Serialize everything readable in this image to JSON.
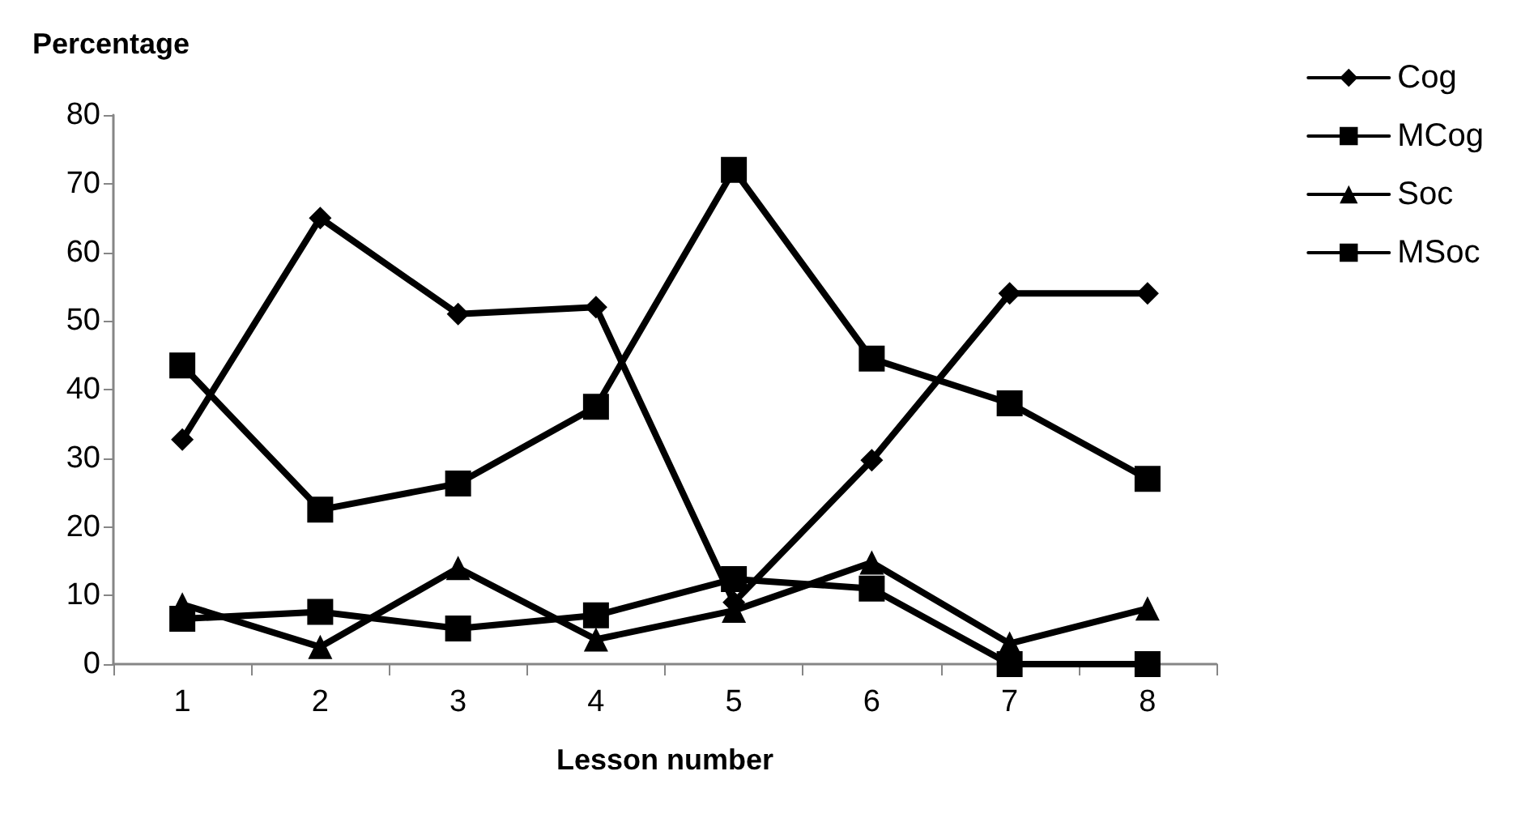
{
  "chart_data": {
    "type": "line",
    "xlabel": "Lesson number",
    "ylabel": "Percentage",
    "categories": [
      "1",
      "2",
      "3",
      "4",
      "5",
      "6",
      "7",
      "8"
    ],
    "series": [
      {
        "name": "Cog",
        "color": "#000000",
        "marker": "diamond",
        "values": [
          32.7,
          65,
          51,
          52,
          9,
          29.7,
          54,
          54
        ]
      },
      {
        "name": "MCog",
        "color": "#000000",
        "marker": "square",
        "values": [
          43.5,
          22.5,
          26.3,
          37.5,
          72,
          44.5,
          38,
          27
        ]
      },
      {
        "name": "Soc",
        "color": "#000000",
        "marker": "triangle",
        "values": [
          8.7,
          2.5,
          14,
          3.6,
          7.8,
          14.8,
          3,
          8.1
        ]
      },
      {
        "name": "MSoc",
        "color": "#000000",
        "marker": "square",
        "values": [
          6.6,
          7.6,
          5.2,
          7.1,
          12.4,
          11,
          0,
          0
        ]
      }
    ],
    "ylim": [
      0,
      80
    ],
    "yticks": [
      0,
      10,
      20,
      30,
      40,
      50,
      60,
      70,
      80
    ],
    "grid": false,
    "legend": "right",
    "line_style": "solid"
  }
}
